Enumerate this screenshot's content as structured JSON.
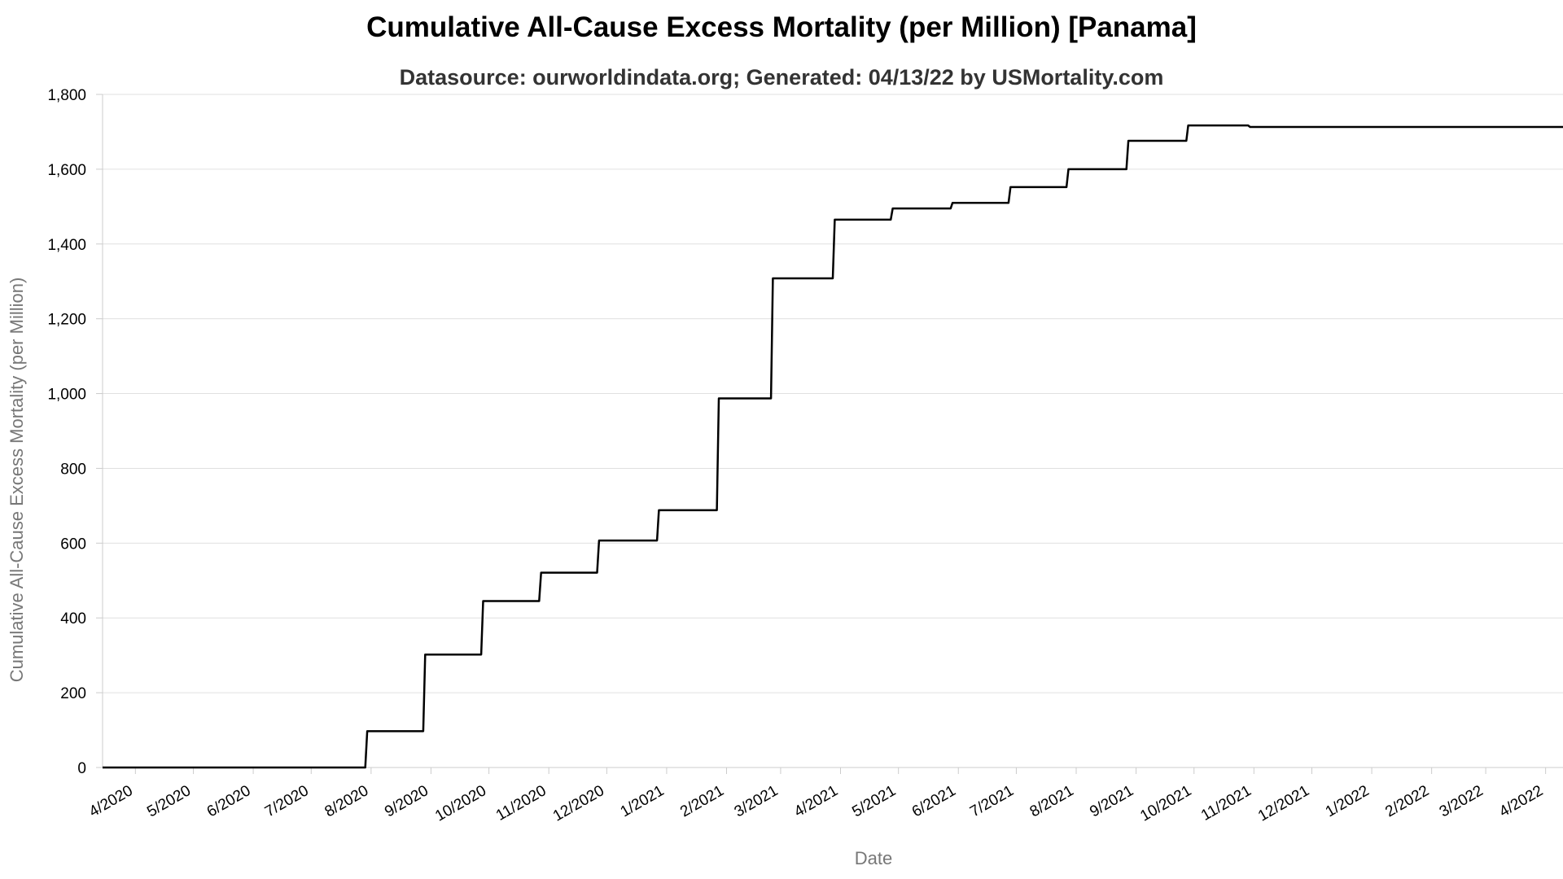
{
  "chart_data": {
    "type": "line",
    "title": "Cumulative All-Cause Excess Mortality (per Million) [Panama]",
    "subtitle": "Datasource: ourworldindata.org; Generated: 04/13/22 by USMortality.com",
    "xlabel": "Date",
    "ylabel": "Cumulative All-Cause Excess Mortality (per Million)",
    "ylim": [
      0,
      1800
    ],
    "xlim": [
      "2020-03-15",
      "2022-04-10"
    ],
    "grid": true,
    "y_ticks": [
      "0",
      "200",
      "400",
      "600",
      "800",
      "1,000",
      "1,200",
      "1,400",
      "1,600",
      "1,800"
    ],
    "x_ticks": [
      {
        "date": "2020-04-01",
        "label": "4/2020"
      },
      {
        "date": "2020-05-01",
        "label": "5/2020"
      },
      {
        "date": "2020-06-01",
        "label": "6/2020"
      },
      {
        "date": "2020-07-01",
        "label": "7/2020"
      },
      {
        "date": "2020-08-01",
        "label": "8/2020"
      },
      {
        "date": "2020-09-01",
        "label": "9/2020"
      },
      {
        "date": "2020-10-01",
        "label": "10/2020"
      },
      {
        "date": "2020-11-01",
        "label": "11/2020"
      },
      {
        "date": "2020-12-01",
        "label": "12/2020"
      },
      {
        "date": "2021-01-01",
        "label": "1/2021"
      },
      {
        "date": "2021-02-01",
        "label": "2/2021"
      },
      {
        "date": "2021-03-01",
        "label": "3/2021"
      },
      {
        "date": "2021-04-01",
        "label": "4/2021"
      },
      {
        "date": "2021-05-01",
        "label": "5/2021"
      },
      {
        "date": "2021-06-01",
        "label": "6/2021"
      },
      {
        "date": "2021-07-01",
        "label": "7/2021"
      },
      {
        "date": "2021-08-01",
        "label": "8/2021"
      },
      {
        "date": "2021-09-01",
        "label": "9/2021"
      },
      {
        "date": "2021-10-01",
        "label": "10/2021"
      },
      {
        "date": "2021-11-01",
        "label": "11/2021"
      },
      {
        "date": "2021-12-01",
        "label": "12/2021"
      },
      {
        "date": "2022-01-01",
        "label": "1/2022"
      },
      {
        "date": "2022-02-01",
        "label": "2/2022"
      },
      {
        "date": "2022-03-01",
        "label": "3/2022"
      },
      {
        "date": "2022-04-01",
        "label": "4/2022"
      }
    ],
    "series": [
      {
        "color": "#000000",
        "points": [
          [
            "2020-03-15",
            0
          ],
          [
            "2020-03-29",
            0
          ],
          [
            "2020-07-29",
            0
          ],
          [
            "2020-07-30",
            97
          ],
          [
            "2020-08-28",
            97
          ],
          [
            "2020-08-29",
            302
          ],
          [
            "2020-09-27",
            302
          ],
          [
            "2020-09-28",
            445
          ],
          [
            "2020-10-27",
            445
          ],
          [
            "2020-10-28",
            521
          ],
          [
            "2020-11-26",
            521
          ],
          [
            "2020-11-27",
            607
          ],
          [
            "2020-12-27",
            607
          ],
          [
            "2020-12-28",
            688
          ],
          [
            "2021-01-27",
            688
          ],
          [
            "2021-01-28",
            987
          ],
          [
            "2021-02-24",
            987
          ],
          [
            "2021-02-25",
            1308
          ],
          [
            "2021-03-28",
            1308
          ],
          [
            "2021-03-29",
            1465
          ],
          [
            "2021-04-27",
            1465
          ],
          [
            "2021-04-28",
            1495
          ],
          [
            "2021-05-28",
            1495
          ],
          [
            "2021-05-29",
            1510
          ],
          [
            "2021-06-27",
            1510
          ],
          [
            "2021-06-28",
            1552
          ],
          [
            "2021-07-27",
            1552
          ],
          [
            "2021-07-28",
            1600
          ],
          [
            "2021-08-27",
            1600
          ],
          [
            "2021-08-28",
            1676
          ],
          [
            "2021-09-27",
            1676
          ],
          [
            "2021-09-28",
            1717
          ],
          [
            "2021-10-29",
            1717
          ],
          [
            "2021-10-30",
            1713
          ],
          [
            "2022-04-10",
            1713
          ]
        ]
      }
    ]
  }
}
